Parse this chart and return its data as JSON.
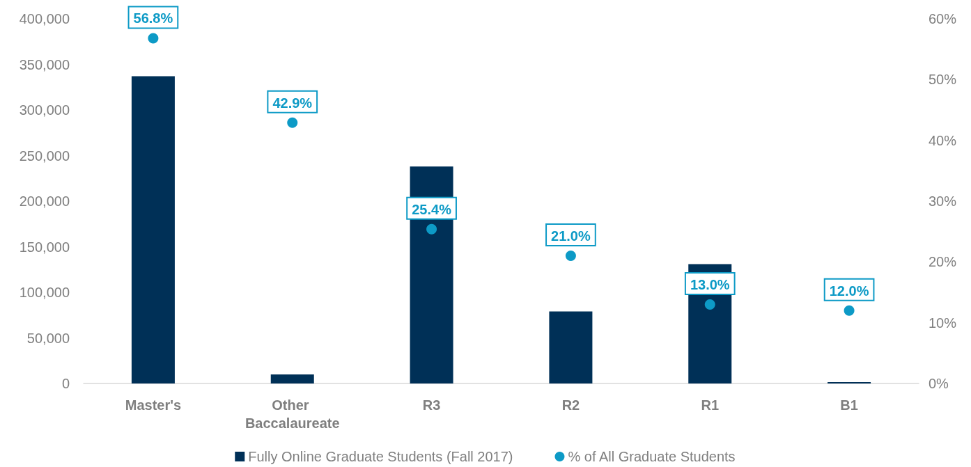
{
  "chart_data": {
    "type": "bar",
    "categories": [
      "Master's",
      "Other Baccalaureate",
      "R3",
      "R2",
      "R1",
      "B1"
    ],
    "series": [
      {
        "name": "Fully Online Graduate Students (Fall 2017)",
        "color": "#003057",
        "values": [
          337000,
          10000,
          238000,
          79000,
          131000,
          1500
        ]
      },
      {
        "name": "% of All Graduate Students",
        "type": "scatter",
        "axis": "y2",
        "color": "#0d9ac6",
        "marker": "circle",
        "values": [
          56.8,
          42.9,
          25.4,
          21.0,
          13.0,
          12.0
        ],
        "value_labels": [
          "56.8%",
          "42.9%",
          "25.4%",
          "21.0%",
          "13.0%",
          "12.0%"
        ]
      }
    ],
    "ylim": [
      0,
      400000
    ],
    "yticks": [
      {
        "value": 0,
        "label": "0"
      },
      {
        "value": 50000,
        "label": "50,000"
      },
      {
        "value": 100000,
        "label": "100,000"
      },
      {
        "value": 150000,
        "label": "150,000"
      },
      {
        "value": 200000,
        "label": "200,000"
      },
      {
        "value": 250000,
        "label": "250,000"
      },
      {
        "value": 300000,
        "label": "300,000"
      },
      {
        "value": 350000,
        "label": "350,000"
      },
      {
        "value": 400000,
        "label": "400,000"
      }
    ],
    "y2lim": [
      0,
      60
    ],
    "y2ticks": [
      {
        "value": 0,
        "label": "0%"
      },
      {
        "value": 10,
        "label": "10%"
      },
      {
        "value": 20,
        "label": "20%"
      },
      {
        "value": 30,
        "label": "30%"
      },
      {
        "value": 40,
        "label": "40%"
      },
      {
        "value": 50,
        "label": "50%"
      },
      {
        "value": 60,
        "label": "60%"
      }
    ],
    "grid": false,
    "legend": "bottom"
  }
}
